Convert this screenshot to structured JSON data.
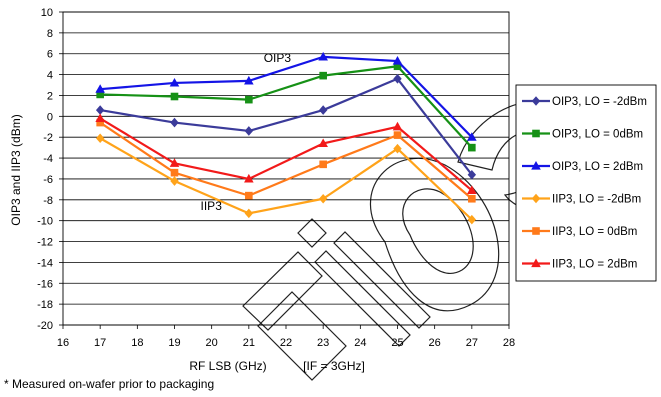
{
  "chart_data": {
    "type": "line",
    "xlabel": "RF LSB (GHz)",
    "xlabel_note": "[IF = 3GHz]",
    "ylabel": "OIP3 and IIP3 (dBm)",
    "footnote": "* Measured on-wafer prior to packaging",
    "xlim": [
      16,
      28
    ],
    "ylim": [
      -20,
      10
    ],
    "x_ticks": [
      16,
      17,
      18,
      19,
      20,
      21,
      22,
      23,
      24,
      25,
      26,
      27,
      28
    ],
    "y_ticks": [
      10,
      8,
      6,
      4,
      2,
      0,
      -2,
      -4,
      -6,
      -8,
      -10,
      -12,
      -14,
      -16,
      -18,
      -20
    ],
    "grid": "horizontal",
    "legend_position": "right",
    "annotations": [
      {
        "text": "OIP3",
        "x": 21.4,
        "y": 5.2
      },
      {
        "text": "IIP3",
        "x": 19.7,
        "y": -9.0
      }
    ],
    "x": [
      17,
      19,
      21,
      23,
      25,
      27
    ],
    "series": [
      {
        "name": "OIP3, LO = -2dBm",
        "color": "#3b3b9a",
        "marker": "diamond",
        "values": [
          0.6,
          -0.6,
          -1.4,
          0.6,
          3.6,
          -5.6
        ]
      },
      {
        "name": "OIP3, LO = 0dBm",
        "color": "#169116",
        "marker": "square",
        "values": [
          2.1,
          1.9,
          1.6,
          3.9,
          4.8,
          -3.0
        ]
      },
      {
        "name": "OIP3, LO = 2dBm",
        "color": "#1414e6",
        "marker": "triangle",
        "values": [
          2.6,
          3.2,
          3.4,
          5.7,
          5.3,
          -2.0
        ]
      },
      {
        "name": "IIP3, LO = -2dBm",
        "color": "#ffa31a",
        "marker": "diamond",
        "values": [
          -2.1,
          -6.2,
          -9.3,
          -7.9,
          -3.1,
          -9.9
        ]
      },
      {
        "name": "IIP3, LO = 0dBm",
        "color": "#ff7a1a",
        "marker": "square",
        "values": [
          -0.6,
          -5.4,
          -7.6,
          -4.6,
          -1.8,
          -7.9
        ]
      },
      {
        "name": "IIP3, LO = 2dBm",
        "color": "#f21a1a",
        "marker": "triangle",
        "values": [
          -0.2,
          -4.5,
          -6.0,
          -2.6,
          -1.0,
          -7.1
        ]
      }
    ]
  }
}
